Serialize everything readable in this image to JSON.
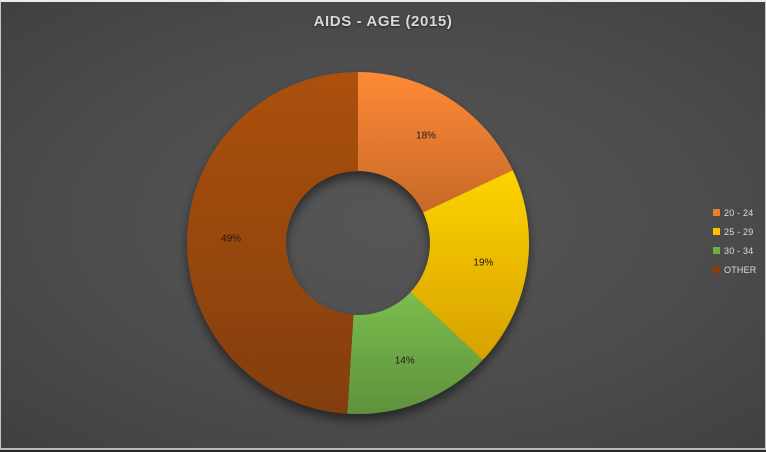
{
  "title": "AIDS - AGE (2015)",
  "chart_data": {
    "type": "pie",
    "subtype": "doughnut",
    "title": "AIDS - AGE (2015)",
    "categories": [
      "20 - 24",
      "25 - 29",
      "30 - 34",
      "OTHER"
    ],
    "values": [
      18,
      19,
      14,
      49
    ],
    "value_labels": [
      "18%",
      "19%",
      "14%",
      "49%"
    ],
    "unit": "%",
    "colors": [
      "#ED7D31",
      "#FFC000",
      "#70AD47",
      "#9C4A0E"
    ],
    "legend_colors": [
      "#ED7D31",
      "#FFC000",
      "#70AD47",
      "#8E3D0A"
    ],
    "legend_position": "right",
    "start_angle_deg": 0,
    "direction": "clockwise",
    "inner_radius_ratio": 0.42,
    "label_color": "#1f1a12",
    "title_color": "#d9d9d9",
    "background_center": "#535353",
    "background_corner": "#242424",
    "grid": false
  }
}
